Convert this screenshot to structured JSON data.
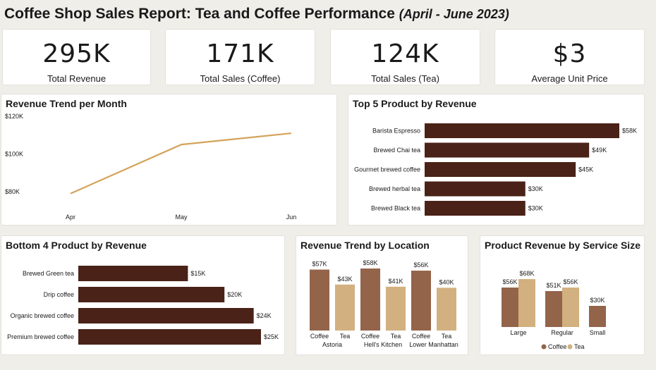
{
  "header": {
    "title": "Coffee Shop Sales Report: Tea and Coffee Performance",
    "subtitle": "(April - June 2023)"
  },
  "kpis": [
    {
      "value": "295K",
      "label": "Total Revenue"
    },
    {
      "value": "171K",
      "label": "Total Sales (Coffee)"
    },
    {
      "value": "124K",
      "label": "Total Sales (Tea)"
    },
    {
      "value": "$3",
      "label": "Average Unit Price"
    }
  ],
  "colors": {
    "bar": "#4a2217",
    "line": "#d4a35a",
    "coffee": "#93644a",
    "tea": "#d2b07f"
  },
  "chart_data": [
    {
      "id": "revenue-trend",
      "type": "line",
      "title": "Revenue Trend per Month",
      "x": [
        "Apr",
        "May",
        "Jun"
      ],
      "values": [
        79,
        105,
        111
      ],
      "yticks": [
        "$120K",
        "$100K",
        "$80K"
      ],
      "ytick_values": [
        120,
        100,
        80
      ],
      "ylim": [
        80,
        120
      ]
    },
    {
      "id": "top5",
      "type": "bar",
      "orientation": "horizontal",
      "title": "Top 5 Product by Revenue",
      "categories": [
        "Barista Espresso",
        "Brewed Chai tea",
        "Gourmet brewed coffee",
        "Brewed herbal tea",
        "Brewed Black tea"
      ],
      "values": [
        58,
        49,
        45,
        30,
        30
      ],
      "labels": [
        "$58K",
        "$49K",
        "$45K",
        "$30K",
        "$30K"
      ]
    },
    {
      "id": "bottom4",
      "type": "bar",
      "orientation": "horizontal",
      "title": "Bottom 4 Product by Revenue",
      "categories": [
        "Brewed Green tea",
        "Drip coffee",
        "Organic brewed coffee",
        "Premium brewed coffee"
      ],
      "values": [
        15,
        20,
        24,
        25
      ],
      "labels": [
        "$15K",
        "$20K",
        "$24K",
        "$25K"
      ]
    },
    {
      "id": "location",
      "type": "bar",
      "title": "Revenue Trend by Location",
      "categories": [
        "Astoria",
        "Hell's Kitchen",
        "Lower Manhattan"
      ],
      "subcategories": [
        "Coffee",
        "Tea"
      ],
      "series": [
        {
          "values": [
            57,
            58,
            56
          ],
          "labels": [
            "$57K",
            "$58K",
            "$56K"
          ]
        },
        {
          "values": [
            43,
            41,
            40
          ],
          "labels": [
            "$43K",
            "$41K",
            "$40K"
          ]
        }
      ]
    },
    {
      "id": "size",
      "type": "bar",
      "title": "Product Revenue by Service Size",
      "categories": [
        "Large",
        "Regular",
        "Small"
      ],
      "series": [
        {
          "name": "Coffee",
          "values": [
            56,
            51,
            30
          ],
          "labels": [
            "$56K",
            "$51K",
            "$30K"
          ]
        },
        {
          "name": "Tea",
          "values": [
            68,
            56,
            null
          ],
          "labels": [
            "$68K",
            "$56K",
            ""
          ]
        }
      ],
      "legend": "bottom-center"
    }
  ]
}
